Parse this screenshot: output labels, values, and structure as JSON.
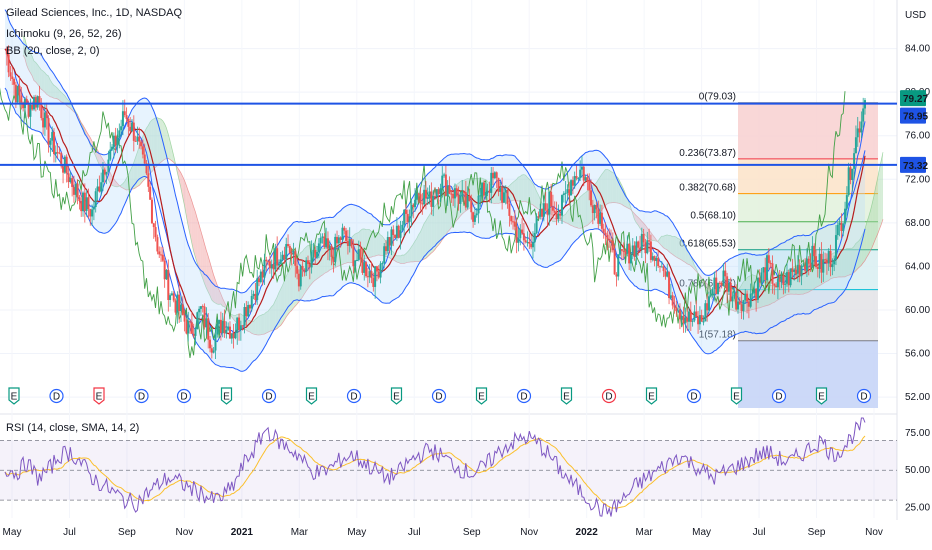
{
  "legend": {
    "title": "Gilead Sciences, Inc., 1D, NASDAQ",
    "ichimoku": "Ichimoku (9, 26, 52, 26)",
    "bb": "BB (20, close, 2, 0)",
    "rsi": "RSI (14, close, SMA, 14, 2)"
  },
  "currency": "USD",
  "colors": {
    "price_line": "#1e53e5",
    "bb_band": "#2962ff",
    "conversion": "#2962ff",
    "base": "#b71c1c",
    "lagging": "#43a047",
    "cloud_bull": "#a5d6a7",
    "cloud_bear": "#ef9a9a",
    "candle_up": "#26a69a",
    "candle_down": "#ef5350",
    "rsi": "#7e57c2",
    "rsi_ma": "#fbc02d",
    "earnings": "#089981",
    "dividend": "#2962ff",
    "earnings_miss": "#f23645"
  },
  "chart_data": [
    {
      "type": "line",
      "title": "Gilead Sciences, Inc., 1D, NASDAQ",
      "ylabel": "USD",
      "ylim": [
        51,
        88
      ],
      "y_ticks": [
        "52.00",
        "56.00",
        "60.00",
        "64.00",
        "68.00",
        "72.00",
        "76.00",
        "80.00",
        "84.00"
      ],
      "x_ticks": [
        "May",
        "Jul",
        "Sep",
        "Nov",
        "2021",
        "Mar",
        "May",
        "Jul",
        "Sep",
        "Nov",
        "2022",
        "Mar",
        "May",
        "Jul",
        "Sep",
        "Nov"
      ],
      "price_labels": [
        {
          "text": "79.27",
          "value": 79.27,
          "color": "#089981"
        },
        {
          "text": "78.95",
          "value": 78.95,
          "color": "#1e53e5"
        },
        {
          "text": "73.32",
          "value": 73.32,
          "color": "#1e53e5"
        }
      ],
      "horizontal_lines": [
        {
          "value": 78.95,
          "color": "#1e53e5"
        },
        {
          "value": 73.32,
          "color": "#1e53e5"
        }
      ],
      "fibonacci": {
        "levels": [
          {
            "label": "0(79.03)",
            "value": 79.03,
            "color": "#787b86",
            "fill": "#f8d0d0"
          },
          {
            "label": "0.236(73.87)",
            "value": 73.87,
            "color": "#f23645",
            "fill": "#fbe3c8"
          },
          {
            "label": "0.382(70.68)",
            "value": 70.68,
            "color": "#ff9800",
            "fill": "#e2f1dc"
          },
          {
            "label": "0.5(68.10)",
            "value": 68.1,
            "color": "#4caf50",
            "fill": "#dff0df"
          },
          {
            "label": "0.618(65.53)",
            "value": 65.53,
            "color": "#089981",
            "fill": "#d8eef1"
          },
          {
            "label": "0.786(61.87)",
            "value": 61.87,
            "color": "#00bcd4",
            "fill": "#e3e3e6"
          },
          {
            "label": "1(57.18)",
            "value": 57.18,
            "color": "#787b86",
            "fill": null
          }
        ],
        "extension_fill": "#c7d5f7"
      },
      "series": [
        {
          "name": "Close",
          "values": [
            84,
            80,
            78.5,
            79.5,
            76,
            74,
            72,
            70,
            69,
            73,
            75,
            78,
            76,
            72,
            66,
            62,
            60,
            58,
            60,
            57,
            59,
            58,
            60,
            62,
            64,
            65,
            66,
            63,
            64,
            66,
            65,
            67,
            65,
            64,
            63,
            66,
            67,
            69,
            71,
            70,
            72,
            71,
            70,
            69,
            71,
            72,
            70,
            67,
            66,
            68,
            70,
            69,
            72,
            73,
            70,
            68,
            64,
            65,
            66,
            66,
            65,
            62,
            60,
            59,
            59,
            62,
            63,
            61,
            61,
            62,
            64,
            62,
            63,
            64,
            65,
            64,
            65,
            69,
            75,
            79.27
          ]
        }
      ]
    },
    {
      "type": "line",
      "title": "RSI (14, close, SMA, 14, 2)",
      "ylim": [
        18,
        85
      ],
      "y_ticks": [
        "25.00",
        "50.00",
        "75.00"
      ],
      "bands": [
        30,
        50,
        70
      ],
      "series": [
        {
          "name": "RSI",
          "values": [
            52,
            48,
            55,
            45,
            50,
            60,
            62,
            55,
            45,
            40,
            35,
            30,
            28,
            34,
            40,
            45,
            42,
            38,
            35,
            30,
            32,
            40,
            55,
            65,
            78,
            70,
            65,
            60,
            50,
            48,
            52,
            58,
            60,
            55,
            50,
            45,
            47,
            55,
            60,
            64,
            60,
            55,
            50,
            48,
            52,
            60,
            66,
            70,
            72,
            68,
            60,
            50,
            42,
            35,
            28,
            22,
            25,
            32,
            40,
            45,
            50,
            55,
            60,
            55,
            50,
            45,
            48,
            52,
            55,
            60,
            62,
            58,
            55,
            60,
            65,
            70,
            60,
            65,
            75,
            82
          ]
        }
      ]
    }
  ]
}
